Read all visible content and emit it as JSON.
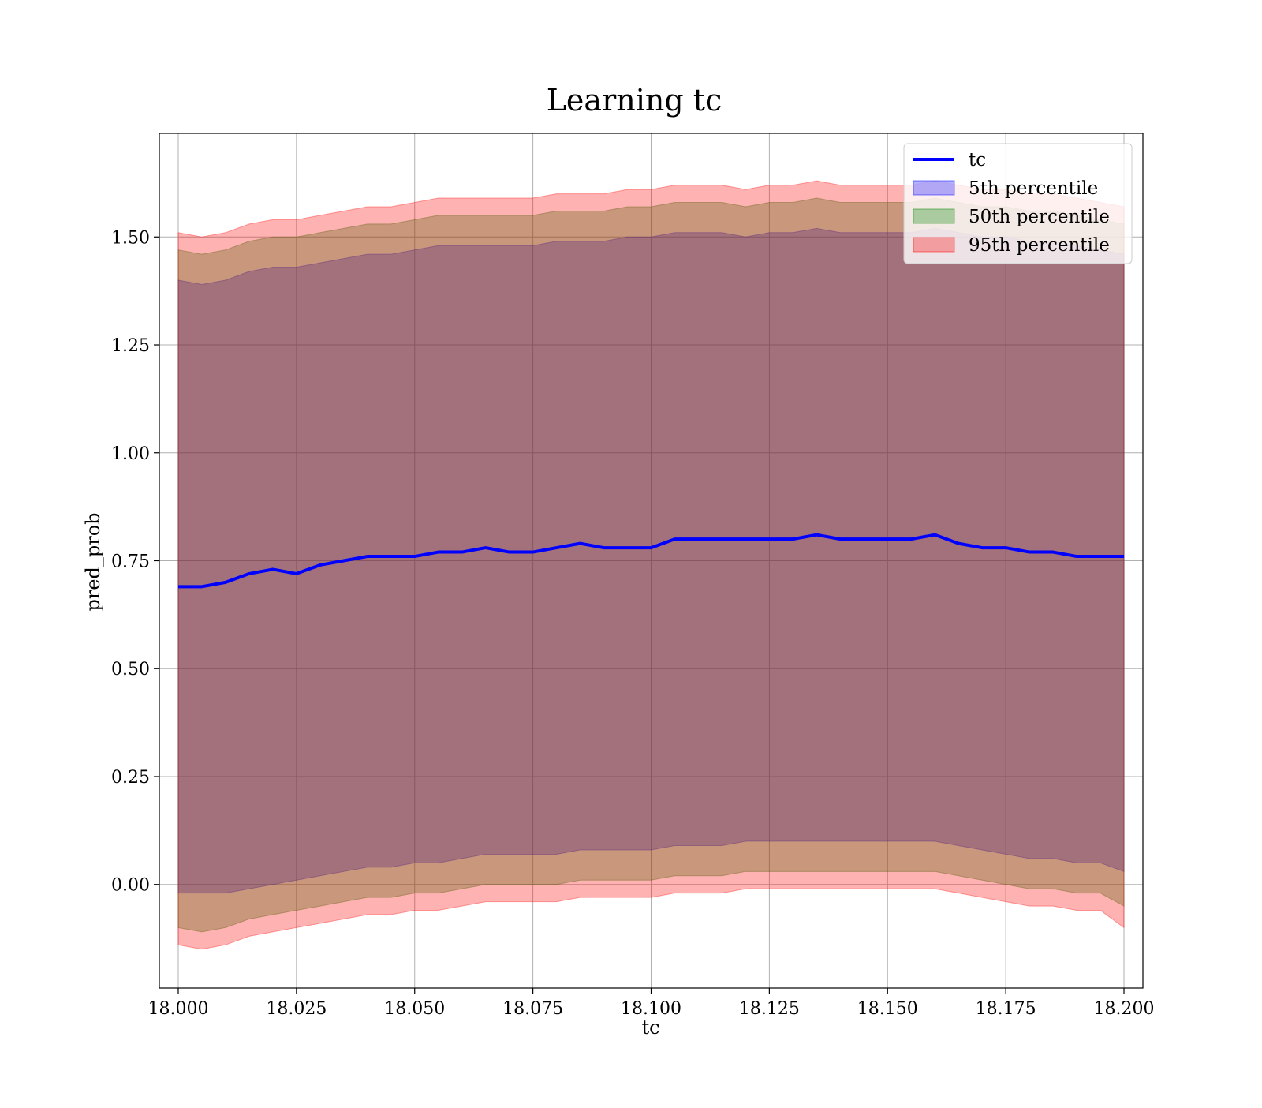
{
  "chart_data": {
    "type": "line",
    "title": "Learning tc",
    "xlabel": "tc",
    "ylabel": "pred_prob",
    "xlim": [
      17.996,
      18.204
    ],
    "ylim": [
      -0.24,
      1.74
    ],
    "x_ticks": [
      18.0,
      18.025,
      18.05,
      18.075,
      18.1,
      18.125,
      18.15,
      18.175,
      18.2
    ],
    "x_tick_labels": [
      "18.000",
      "18.025",
      "18.050",
      "18.075",
      "18.100",
      "18.125",
      "18.150",
      "18.175",
      "18.200"
    ],
    "y_ticks": [
      0.0,
      0.25,
      0.5,
      0.75,
      1.0,
      1.25,
      1.5
    ],
    "y_tick_labels": [
      "0.00",
      "0.25",
      "0.50",
      "0.75",
      "1.00",
      "1.25",
      "1.50"
    ],
    "grid": true,
    "legend_position": "top-right",
    "colors": {
      "line": "#0000ff",
      "band_5": "#0000ff",
      "band_50": "#008000",
      "band_95": "#ff0000"
    },
    "series": [
      {
        "name": "tc",
        "kind": "line",
        "x": [
          18.0,
          18.005,
          18.01,
          18.015,
          18.02,
          18.025,
          18.03,
          18.035,
          18.04,
          18.045,
          18.05,
          18.055,
          18.06,
          18.065,
          18.07,
          18.075,
          18.08,
          18.085,
          18.09,
          18.095,
          18.1,
          18.105,
          18.11,
          18.115,
          18.12,
          18.125,
          18.13,
          18.135,
          18.14,
          18.145,
          18.15,
          18.155,
          18.16,
          18.165,
          18.17,
          18.175,
          18.18,
          18.185,
          18.19,
          18.195,
          18.2
        ],
        "y": [
          0.69,
          0.69,
          0.7,
          0.72,
          0.73,
          0.72,
          0.74,
          0.75,
          0.76,
          0.76,
          0.76,
          0.77,
          0.77,
          0.78,
          0.77,
          0.77,
          0.78,
          0.79,
          0.78,
          0.78,
          0.78,
          0.8,
          0.8,
          0.8,
          0.8,
          0.8,
          0.8,
          0.81,
          0.8,
          0.8,
          0.8,
          0.8,
          0.81,
          0.79,
          0.78,
          0.78,
          0.77,
          0.77,
          0.76,
          0.76,
          0.76
        ]
      },
      {
        "name": "5th percentile",
        "kind": "band",
        "x": [
          18.0,
          18.005,
          18.01,
          18.015,
          18.02,
          18.025,
          18.03,
          18.035,
          18.04,
          18.045,
          18.05,
          18.055,
          18.06,
          18.065,
          18.07,
          18.075,
          18.08,
          18.085,
          18.09,
          18.095,
          18.1,
          18.105,
          18.11,
          18.115,
          18.12,
          18.125,
          18.13,
          18.135,
          18.14,
          18.145,
          18.15,
          18.155,
          18.16,
          18.165,
          18.17,
          18.175,
          18.18,
          18.185,
          18.19,
          18.195,
          18.2
        ],
        "lower": [
          -0.02,
          -0.02,
          -0.02,
          -0.01,
          0.0,
          0.01,
          0.02,
          0.03,
          0.04,
          0.04,
          0.05,
          0.05,
          0.06,
          0.07,
          0.07,
          0.07,
          0.07,
          0.08,
          0.08,
          0.08,
          0.08,
          0.09,
          0.09,
          0.09,
          0.1,
          0.1,
          0.1,
          0.1,
          0.1,
          0.1,
          0.1,
          0.1,
          0.1,
          0.09,
          0.08,
          0.07,
          0.06,
          0.06,
          0.05,
          0.05,
          0.03
        ],
        "upper": [
          1.4,
          1.39,
          1.4,
          1.42,
          1.43,
          1.43,
          1.44,
          1.45,
          1.46,
          1.46,
          1.47,
          1.48,
          1.48,
          1.48,
          1.48,
          1.48,
          1.49,
          1.49,
          1.49,
          1.5,
          1.5,
          1.51,
          1.51,
          1.51,
          1.5,
          1.51,
          1.51,
          1.52,
          1.51,
          1.51,
          1.51,
          1.51,
          1.52,
          1.51,
          1.5,
          1.5,
          1.49,
          1.49,
          1.48,
          1.47,
          1.46
        ]
      },
      {
        "name": "50th percentile",
        "kind": "band",
        "x": [
          18.0,
          18.005,
          18.01,
          18.015,
          18.02,
          18.025,
          18.03,
          18.035,
          18.04,
          18.045,
          18.05,
          18.055,
          18.06,
          18.065,
          18.07,
          18.075,
          18.08,
          18.085,
          18.09,
          18.095,
          18.1,
          18.105,
          18.11,
          18.115,
          18.12,
          18.125,
          18.13,
          18.135,
          18.14,
          18.145,
          18.15,
          18.155,
          18.16,
          18.165,
          18.17,
          18.175,
          18.18,
          18.185,
          18.19,
          18.195,
          18.2
        ],
        "lower": [
          -0.1,
          -0.11,
          -0.1,
          -0.08,
          -0.07,
          -0.06,
          -0.05,
          -0.04,
          -0.03,
          -0.03,
          -0.02,
          -0.02,
          -0.01,
          0.0,
          0.0,
          0.0,
          0.0,
          0.01,
          0.01,
          0.01,
          0.01,
          0.02,
          0.02,
          0.02,
          0.03,
          0.03,
          0.03,
          0.03,
          0.03,
          0.03,
          0.03,
          0.03,
          0.03,
          0.02,
          0.01,
          0.0,
          -0.01,
          -0.01,
          -0.02,
          -0.02,
          -0.05
        ],
        "upper": [
          1.47,
          1.46,
          1.47,
          1.49,
          1.5,
          1.5,
          1.51,
          1.52,
          1.53,
          1.53,
          1.54,
          1.55,
          1.55,
          1.55,
          1.55,
          1.55,
          1.56,
          1.56,
          1.56,
          1.57,
          1.57,
          1.58,
          1.58,
          1.58,
          1.57,
          1.58,
          1.58,
          1.59,
          1.58,
          1.58,
          1.58,
          1.58,
          1.59,
          1.58,
          1.57,
          1.57,
          1.56,
          1.56,
          1.55,
          1.54,
          1.53
        ]
      },
      {
        "name": "95th percentile",
        "kind": "band",
        "x": [
          18.0,
          18.005,
          18.01,
          18.015,
          18.02,
          18.025,
          18.03,
          18.035,
          18.04,
          18.045,
          18.05,
          18.055,
          18.06,
          18.065,
          18.07,
          18.075,
          18.08,
          18.085,
          18.09,
          18.095,
          18.1,
          18.105,
          18.11,
          18.115,
          18.12,
          18.125,
          18.13,
          18.135,
          18.14,
          18.145,
          18.15,
          18.155,
          18.16,
          18.165,
          18.17,
          18.175,
          18.18,
          18.185,
          18.19,
          18.195,
          18.2
        ],
        "lower": [
          -0.14,
          -0.15,
          -0.14,
          -0.12,
          -0.11,
          -0.1,
          -0.09,
          -0.08,
          -0.07,
          -0.07,
          -0.06,
          -0.06,
          -0.05,
          -0.04,
          -0.04,
          -0.04,
          -0.04,
          -0.03,
          -0.03,
          -0.03,
          -0.03,
          -0.02,
          -0.02,
          -0.02,
          -0.01,
          -0.01,
          -0.01,
          -0.01,
          -0.01,
          -0.01,
          -0.01,
          -0.01,
          -0.01,
          -0.02,
          -0.03,
          -0.04,
          -0.05,
          -0.05,
          -0.06,
          -0.06,
          -0.1
        ],
        "upper": [
          1.51,
          1.5,
          1.51,
          1.53,
          1.54,
          1.54,
          1.55,
          1.56,
          1.57,
          1.57,
          1.58,
          1.59,
          1.59,
          1.59,
          1.59,
          1.59,
          1.6,
          1.6,
          1.6,
          1.61,
          1.61,
          1.62,
          1.62,
          1.62,
          1.61,
          1.62,
          1.62,
          1.63,
          1.62,
          1.62,
          1.62,
          1.62,
          1.63,
          1.62,
          1.61,
          1.61,
          1.6,
          1.6,
          1.59,
          1.58,
          1.57
        ]
      }
    ]
  }
}
